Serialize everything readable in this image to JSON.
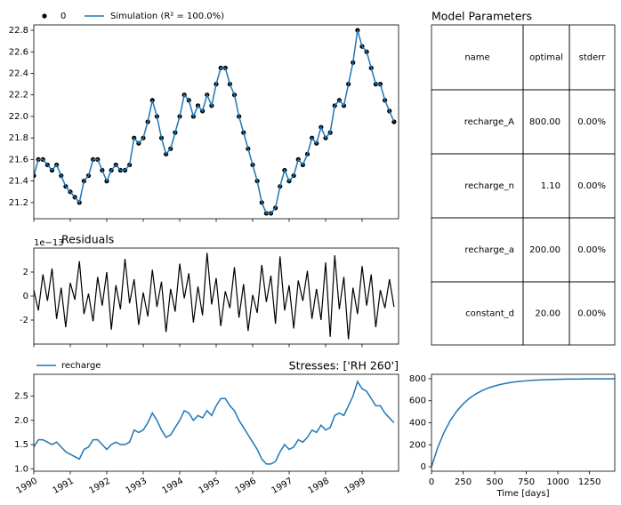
{
  "chart_data": [
    {
      "type": "line",
      "x": [
        1990,
        1990.125,
        1990.25,
        1990.375,
        1990.5,
        1990.625,
        1990.75,
        1990.875,
        1991,
        1991.125,
        1991.25,
        1991.375,
        1991.5,
        1991.625,
        1991.75,
        1991.875,
        1992,
        1992.125,
        1992.25,
        1992.375,
        1992.5,
        1992.625,
        1992.75,
        1992.875,
        1993,
        1993.125,
        1993.25,
        1993.375,
        1993.5,
        1993.625,
        1993.75,
        1993.875,
        1994,
        1994.125,
        1994.25,
        1994.375,
        1994.5,
        1994.625,
        1994.75,
        1994.875,
        1995,
        1995.125,
        1995.25,
        1995.375,
        1995.5,
        1995.625,
        1995.75,
        1995.875,
        1996,
        1996.125,
        1996.25,
        1996.375,
        1996.5,
        1996.625,
        1996.75,
        1996.875,
        1997,
        1997.125,
        1997.25,
        1997.375,
        1997.5,
        1997.625,
        1997.75,
        1997.875,
        1998,
        1998.125,
        1998.25,
        1998.375,
        1998.5,
        1998.625,
        1998.75,
        1998.875,
        1999,
        1999.125,
        1999.25,
        1999.375,
        1999.5,
        1999.625,
        1999.75,
        1999.875
      ],
      "series": [
        {
          "name": "0",
          "color": "#000000",
          "style": "markers",
          "values": [
            21.45,
            21.6,
            21.6,
            21.55,
            21.5,
            21.55,
            21.45,
            21.35,
            21.3,
            21.25,
            21.2,
            21.4,
            21.45,
            21.6,
            21.6,
            21.5,
            21.4,
            21.5,
            21.55,
            21.5,
            21.5,
            21.55,
            21.8,
            21.75,
            21.8,
            21.95,
            22.15,
            22.0,
            21.8,
            21.65,
            21.7,
            21.85,
            22.0,
            22.2,
            22.15,
            22.0,
            22.1,
            22.05,
            22.2,
            22.1,
            22.3,
            22.45,
            22.45,
            22.3,
            22.2,
            22.0,
            21.85,
            21.7,
            21.55,
            21.4,
            21.2,
            21.1,
            21.1,
            21.15,
            21.35,
            21.5,
            21.4,
            21.45,
            21.6,
            21.55,
            21.65,
            21.8,
            21.75,
            21.9,
            21.8,
            21.85,
            22.1,
            22.15,
            22.1,
            22.3,
            22.5,
            22.8,
            22.65,
            22.6,
            22.45,
            22.3,
            22.3,
            22.15,
            22.05,
            21.95
          ]
        },
        {
          "name": "Simulation (R² = 100.0%)",
          "color": "#1f77b4",
          "style": "line",
          "values": [
            21.45,
            21.6,
            21.6,
            21.55,
            21.5,
            21.55,
            21.45,
            21.35,
            21.3,
            21.25,
            21.2,
            21.4,
            21.45,
            21.6,
            21.6,
            21.5,
            21.4,
            21.5,
            21.55,
            21.5,
            21.5,
            21.55,
            21.8,
            21.75,
            21.8,
            21.95,
            22.15,
            22.0,
            21.8,
            21.65,
            21.7,
            21.85,
            22.0,
            22.2,
            22.15,
            22.0,
            22.1,
            22.05,
            22.2,
            22.1,
            22.3,
            22.45,
            22.45,
            22.3,
            22.2,
            22.0,
            21.85,
            21.7,
            21.55,
            21.4,
            21.2,
            21.1,
            21.1,
            21.15,
            21.35,
            21.5,
            21.4,
            21.45,
            21.6,
            21.55,
            21.65,
            21.8,
            21.75,
            21.9,
            21.8,
            21.85,
            22.1,
            22.15,
            22.1,
            22.3,
            22.5,
            22.8,
            22.65,
            22.6,
            22.45,
            22.3,
            22.3,
            22.15,
            22.05,
            21.95
          ]
        }
      ],
      "xlim": [
        1990,
        2000
      ],
      "xticks": [
        1990,
        1991,
        1992,
        1993,
        1994,
        1995,
        1996,
        1997,
        1998,
        1999
      ],
      "ylim": [
        21.05,
        22.85
      ],
      "yticks": [
        21.2,
        21.4,
        21.6,
        21.8,
        {
          "value": 22,
          "label": "22.0"
        },
        22.2,
        22.4,
        22.6,
        22.8
      ]
    },
    {
      "type": "line",
      "title": "Residuals",
      "offset_label": "1e−13",
      "x": [
        1990,
        1990.125,
        1990.25,
        1990.375,
        1990.5,
        1990.625,
        1990.75,
        1990.875,
        1991,
        1991.125,
        1991.25,
        1991.375,
        1991.5,
        1991.625,
        1991.75,
        1991.875,
        1992,
        1992.125,
        1992.25,
        1992.375,
        1992.5,
        1992.625,
        1992.75,
        1992.875,
        1993,
        1993.125,
        1993.25,
        1993.375,
        1993.5,
        1993.625,
        1993.75,
        1993.875,
        1994,
        1994.125,
        1994.25,
        1994.375,
        1994.5,
        1994.625,
        1994.75,
        1994.875,
        1995,
        1995.125,
        1995.25,
        1995.375,
        1995.5,
        1995.625,
        1995.75,
        1995.875,
        1996,
        1996.125,
        1996.25,
        1996.375,
        1996.5,
        1996.625,
        1996.75,
        1996.875,
        1997,
        1997.125,
        1997.25,
        1997.375,
        1997.5,
        1997.625,
        1997.75,
        1997.875,
        1998,
        1998.125,
        1998.25,
        1998.375,
        1998.5,
        1998.625,
        1998.75,
        1998.875,
        1999,
        1999.125,
        1999.25,
        1999.375,
        1999.5,
        1999.625,
        1999.75,
        1999.875
      ],
      "series": [
        {
          "color": "#000000",
          "style": "line",
          "values": [
            0.5,
            -1.2,
            1.8,
            -0.4,
            2.3,
            -1.9,
            0.7,
            -2.6,
            1.1,
            -0.3,
            2.9,
            -1.5,
            0.2,
            -2.1,
            1.6,
            -0.8,
            2.0,
            -2.8,
            0.9,
            -1.1,
            3.1,
            -0.6,
            1.4,
            -2.4,
            0.3,
            -1.7,
            2.2,
            -0.9,
            1.2,
            -3.0,
            0.6,
            -1.3,
            2.7,
            -0.2,
            1.9,
            -2.2,
            0.8,
            -1.6,
            3.6,
            -0.7,
            1.5,
            -2.5,
            0.4,
            -1.0,
            2.4,
            -1.8,
            1.0,
            -2.9,
            0.1,
            -1.4,
            2.6,
            -0.5,
            1.7,
            -2.3,
            3.3,
            -1.2,
            0.9,
            -2.7,
            1.3,
            -0.4,
            2.1,
            -1.9,
            0.6,
            -2.0,
            2.8,
            -3.4,
            3.4,
            -1.1,
            1.6,
            -3.6,
            0.7,
            -1.5,
            2.5,
            -0.8,
            1.8,
            -2.6,
            0.5,
            -1.0,
            1.4,
            -0.9
          ]
        }
      ],
      "xlim": [
        1990,
        2000
      ],
      "xticks": [
        1990,
        1991,
        1992,
        1993,
        1994,
        1995,
        1996,
        1997,
        1998,
        1999
      ],
      "ylim": [
        -4,
        4
      ],
      "yticks": [
        -2,
        0,
        2
      ]
    },
    {
      "type": "line",
      "title": "Stresses: ['RH 260']",
      "x": [
        1990,
        1990.125,
        1990.25,
        1990.375,
        1990.5,
        1990.625,
        1990.75,
        1990.875,
        1991,
        1991.125,
        1991.25,
        1991.375,
        1991.5,
        1991.625,
        1991.75,
        1991.875,
        1992,
        1992.125,
        1992.25,
        1992.375,
        1992.5,
        1992.625,
        1992.75,
        1992.875,
        1993,
        1993.125,
        1993.25,
        1993.375,
        1993.5,
        1993.625,
        1993.75,
        1993.875,
        1994,
        1994.125,
        1994.25,
        1994.375,
        1994.5,
        1994.625,
        1994.75,
        1994.875,
        1995,
        1995.125,
        1995.25,
        1995.375,
        1995.5,
        1995.625,
        1995.75,
        1995.875,
        1996,
        1996.125,
        1996.25,
        1996.375,
        1996.5,
        1996.625,
        1996.75,
        1996.875,
        1997,
        1997.125,
        1997.25,
        1997.375,
        1997.5,
        1997.625,
        1997.75,
        1997.875,
        1998,
        1998.125,
        1998.25,
        1998.375,
        1998.5,
        1998.625,
        1998.75,
        1998.875,
        1999,
        1999.125,
        1999.25,
        1999.375,
        1999.5,
        1999.625,
        1999.75,
        1999.875
      ],
      "series": [
        {
          "name": "recharge",
          "color": "#1f77b4",
          "style": "line",
          "values": [
            1.45,
            1.6,
            1.6,
            1.55,
            1.5,
            1.55,
            1.45,
            1.35,
            1.3,
            1.25,
            1.2,
            1.4,
            1.45,
            1.6,
            1.6,
            1.5,
            1.4,
            1.5,
            1.55,
            1.5,
            1.5,
            1.55,
            1.8,
            1.75,
            1.8,
            1.95,
            2.15,
            2.0,
            1.8,
            1.65,
            1.7,
            1.85,
            2.0,
            2.2,
            2.15,
            2.0,
            2.1,
            2.05,
            2.2,
            2.1,
            2.3,
            2.45,
            2.45,
            2.3,
            2.2,
            2.0,
            1.85,
            1.7,
            1.55,
            1.4,
            1.2,
            1.1,
            1.1,
            1.15,
            1.35,
            1.5,
            1.4,
            1.45,
            1.6,
            1.55,
            1.65,
            1.8,
            1.75,
            1.9,
            1.8,
            1.85,
            2.1,
            2.15,
            2.1,
            2.3,
            2.5,
            2.8,
            2.65,
            2.6,
            2.45,
            2.3,
            2.3,
            2.15,
            2.05,
            1.95
          ]
        }
      ],
      "xlim": [
        1990,
        2000
      ],
      "xticks": [
        1990,
        1991,
        1992,
        1993,
        1994,
        1995,
        1996,
        1997,
        1998,
        1999
      ],
      "ylim": [
        0.95,
        2.95
      ],
      "yticks": [
        {
          "value": 1,
          "label": "1.0"
        },
        1.5,
        {
          "value": 2,
          "label": "2.0"
        },
        2.5
      ]
    },
    {
      "type": "line",
      "xlabel": "Time [days]",
      "x": [
        0,
        50,
        100,
        150,
        200,
        250,
        300,
        350,
        400,
        450,
        500,
        550,
        600,
        650,
        700,
        750,
        800,
        850,
        900,
        950,
        1000,
        1050,
        1100,
        1150,
        1200,
        1250,
        1300,
        1350,
        1400,
        1450
      ],
      "series": [
        {
          "color": "#1f77b4",
          "style": "line",
          "values": [
            0,
            177,
            315,
            422,
            506,
            571,
            622,
            661,
            692,
            716,
            734,
            749,
            760,
            769,
            776,
            781,
            785,
            789,
            791,
            793,
            795,
            796,
            797,
            797,
            798,
            799,
            799,
            799,
            799,
            800
          ]
        }
      ],
      "xlim": [
        0,
        1450
      ],
      "xticks": [
        0,
        250,
        500,
        750,
        1000,
        1250
      ],
      "ylim": [
        -40,
        840
      ],
      "yticks": [
        0,
        200,
        400,
        600,
        800
      ]
    }
  ],
  "table": {
    "title": "Model Parameters",
    "columns": [
      "name",
      "optimal",
      "stderr"
    ],
    "rows": [
      [
        "recharge_A",
        "800.00",
        "0.00%"
      ],
      [
        "recharge_n",
        "1.10",
        "0.00%"
      ],
      [
        "recharge_a",
        "200.00",
        "0.00%"
      ],
      [
        "constant_d",
        "20.00",
        "0.00%"
      ]
    ]
  }
}
